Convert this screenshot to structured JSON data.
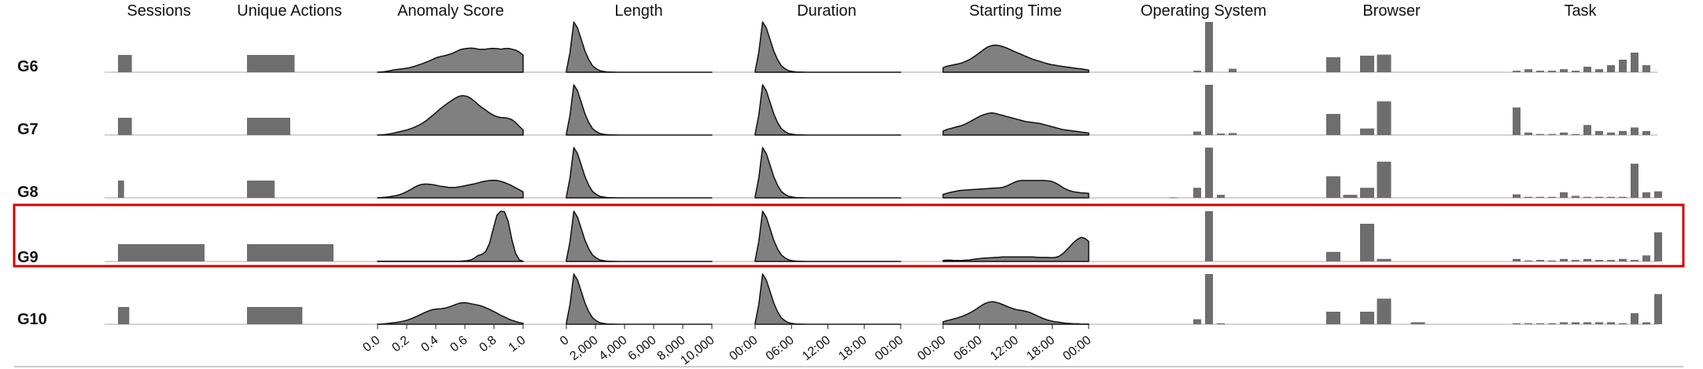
{
  "chart_data": {
    "type": "small-multiples",
    "columns": [
      "Sessions",
      "Unique Actions",
      "Anomaly Score",
      "Length",
      "Duration",
      "Starting Time",
      "Operating System",
      "Browser",
      "Task"
    ],
    "rows": [
      "G6",
      "G7",
      "G8",
      "G9",
      "G10"
    ],
    "highlighted_row": "G9",
    "axes": {
      "anomaly_ticks": [
        "0.0",
        "0.2",
        "0.4",
        "0.6",
        "0.8",
        "1.0"
      ],
      "length_ticks": [
        "0",
        "2,000",
        "4,000",
        "6,000",
        "8,000",
        "10,000"
      ],
      "duration_ticks": [
        "00:00",
        "06:00",
        "12:00",
        "18:00",
        "00:00"
      ],
      "starting_time_ticks": [
        "00:00",
        "06:00",
        "12:00",
        "18:00",
        "00:00"
      ]
    },
    "groups": [
      {
        "sessions": 0.16,
        "unique_actions": 0.55,
        "anomaly": [
          0.1,
          0.6,
          1.4,
          2.5,
          4,
          5.3,
          6.3,
          7.2,
          8.2,
          10,
          12,
          14.5,
          17,
          20,
          23,
          26.5,
          29.5,
          31.5,
          33,
          35,
          37.5,
          41,
          44.5,
          46.5,
          47.5,
          48,
          47.5,
          46,
          45.5,
          46,
          47,
          47.5,
          47,
          46,
          47,
          47.5,
          46,
          44,
          40,
          34
        ],
        "length": [
          2,
          40,
          100,
          88,
          65,
          42,
          25,
          13,
          7,
          3,
          1.5,
          0.6,
          0.3,
          0.1,
          0,
          0,
          0,
          0,
          0,
          0,
          0,
          0,
          0,
          0,
          0,
          0,
          0,
          0,
          0,
          0,
          0,
          0,
          0,
          0,
          0,
          0,
          0,
          0,
          0,
          0
        ],
        "duration": [
          2,
          40,
          100,
          88,
          65,
          42,
          25,
          13,
          7,
          3,
          1.5,
          0.6,
          0.3,
          0.1,
          0,
          0,
          0,
          0,
          0,
          0,
          0,
          0,
          0,
          0,
          0,
          0,
          0,
          0,
          0,
          0,
          0,
          0,
          0,
          0,
          0,
          0,
          0,
          0,
          0,
          0
        ],
        "start_time": [
          9,
          12,
          13.5,
          15,
          16.5,
          18.5,
          21.5,
          25,
          29.5,
          34.5,
          40,
          46,
          50.5,
          53,
          54,
          53,
          51,
          48.5,
          45,
          41.5,
          38.5,
          35.5,
          32,
          29,
          26,
          23.5,
          21.5,
          19,
          17,
          15,
          14,
          12.5,
          11.5,
          10.5,
          9.5,
          8.5,
          7.5,
          6.5,
          5.5,
          4
        ],
        "os": [
          0,
          0,
          0,
          0,
          0,
          0.03,
          1.0,
          0,
          0.07,
          0
        ],
        "browser": [
          0.3,
          0,
          0.33,
          0.35,
          0,
          0,
          0,
          0,
          0,
          0
        ],
        "task": [
          0.03,
          0.06,
          0.03,
          0.03,
          0.06,
          0.03,
          0.11,
          0.06,
          0.14,
          0.25,
          0.39,
          0.14,
          0
        ]
      },
      {
        "sessions": 0.16,
        "unique_actions": 0.5,
        "anomaly": [
          0.1,
          0.4,
          1,
          2,
          3.5,
          5.2,
          6.8,
          8.6,
          10.5,
          13,
          16,
          19.5,
          23.5,
          28.5,
          34.5,
          40.5,
          47,
          53.5,
          59,
          64.5,
          69.5,
          74,
          77.5,
          78.5,
          77,
          73,
          67,
          60.5,
          54.5,
          49.5,
          44,
          39.5,
          36.5,
          35,
          34.5,
          33.5,
          30.5,
          25,
          17,
          10
        ],
        "length": [
          2,
          40,
          100,
          88,
          65,
          42,
          25,
          13,
          7,
          3,
          1.5,
          0.6,
          0.3,
          0.1,
          0,
          0,
          0,
          0,
          0,
          0,
          0,
          0,
          0,
          0,
          0,
          0,
          0,
          0,
          0,
          0,
          0,
          0,
          0,
          0,
          0,
          0,
          0,
          0,
          0,
          0
        ],
        "duration": [
          2,
          40,
          100,
          88,
          65,
          42,
          25,
          13,
          7,
          3,
          1.5,
          0.6,
          0.3,
          0.1,
          0,
          0,
          0,
          0,
          0,
          0,
          0,
          0,
          0,
          0,
          0,
          0,
          0,
          0,
          0,
          0,
          0,
          0,
          0,
          0,
          0,
          0,
          0,
          0,
          0,
          0
        ],
        "start_time": [
          8,
          11,
          13,
          15,
          17,
          19,
          22,
          26,
          30,
          34,
          38,
          41,
          43,
          44,
          43,
          41,
          39,
          37,
          35,
          33,
          31,
          29,
          27,
          26,
          25,
          24,
          23,
          21,
          19,
          17,
          15,
          13,
          11,
          10,
          9,
          8,
          7,
          6,
          5,
          4
        ],
        "os": [
          0,
          0,
          0,
          0,
          0,
          0.07,
          1.0,
          0.03,
          0.04,
          0
        ],
        "browser": [
          0.42,
          0,
          0.13,
          0.67,
          0,
          0,
          0,
          0,
          0,
          0
        ],
        "task": [
          0.55,
          0.05,
          0.02,
          0.02,
          0.05,
          0.02,
          0.2,
          0.08,
          0.05,
          0.08,
          0.15,
          0.08,
          0
        ]
      },
      {
        "sessions": 0.07,
        "unique_actions": 0.32,
        "anomaly": [
          0.1,
          0.6,
          1.2,
          2.1,
          3.3,
          4.6,
          6.5,
          9.5,
          13,
          17,
          21.5,
          25,
          27,
          27.5,
          27,
          26,
          24.5,
          23,
          22,
          21,
          20.5,
          21,
          22,
          23.5,
          25,
          26.5,
          28,
          30,
          32,
          33.5,
          34.5,
          35,
          34.5,
          33,
          30.5,
          27.5,
          24,
          20,
          16,
          12
        ],
        "length": [
          2,
          40,
          100,
          88,
          65,
          42,
          25,
          13,
          7,
          3,
          1.5,
          0.6,
          0.3,
          0.1,
          0,
          0,
          0,
          0,
          0,
          0,
          0,
          0,
          0,
          0,
          0,
          0,
          0,
          0,
          0,
          0,
          0,
          0,
          0,
          0,
          0,
          0,
          0,
          0,
          0,
          0
        ],
        "duration": [
          2,
          40,
          100,
          88,
          65,
          42,
          25,
          13,
          7,
          3,
          1.5,
          0.6,
          0.3,
          0.1,
          0,
          0,
          0,
          0,
          0,
          0,
          0,
          0,
          0,
          0,
          0,
          0,
          0,
          0,
          0,
          0,
          0,
          0,
          0,
          0,
          0,
          0,
          0,
          0,
          0,
          0
        ],
        "start_time": [
          7,
          9,
          11,
          12.5,
          14,
          15,
          15.5,
          16,
          16.5,
          17,
          17.5,
          18,
          18.5,
          19,
          19.5,
          20,
          21,
          23.5,
          27,
          30.5,
          33.5,
          34.5,
          34.5,
          34.5,
          34.5,
          34.5,
          34.5,
          34.5,
          34,
          33,
          30,
          26,
          21,
          17,
          14,
          12,
          11,
          10,
          9.5,
          9
        ],
        "os": [
          0,
          0,
          0,
          0.01,
          0,
          0.2,
          1.0,
          0.06,
          0,
          0
        ],
        "browser": [
          0.43,
          0.06,
          0.2,
          0.72,
          0,
          0,
          0,
          0,
          0,
          0
        ],
        "task": [
          0.07,
          0.02,
          0.02,
          0.02,
          0.11,
          0.04,
          0.02,
          0.02,
          0.02,
          0.02,
          0.68,
          0.11,
          0.13
        ]
      },
      {
        "sessions": 1.0,
        "unique_actions": 1.0,
        "anomaly": [
          0.5,
          0.5,
          0.5,
          0.5,
          0.5,
          0.5,
          0.5,
          0.5,
          0.5,
          0.5,
          0.5,
          0.5,
          0.5,
          0.5,
          0.5,
          0.5,
          0.5,
          0.5,
          0.5,
          0.5,
          0.5,
          0.5,
          0.5,
          1,
          1.5,
          3,
          7,
          12,
          14,
          20,
          36,
          65,
          92,
          100,
          99,
          80,
          43,
          16,
          3,
          0.5
        ],
        "length": [
          2,
          40,
          100,
          88,
          65,
          42,
          25,
          13,
          7,
          3,
          1.5,
          0.6,
          0.3,
          0.1,
          0,
          0,
          0,
          0,
          0,
          0,
          0,
          0,
          0,
          0,
          0,
          0,
          0,
          0,
          0,
          0,
          0,
          0,
          0,
          0,
          0,
          0,
          0,
          0,
          0,
          0
        ],
        "duration": [
          2,
          40,
          100,
          88,
          65,
          42,
          25,
          13,
          7,
          3,
          1.5,
          0.6,
          0.3,
          0.1,
          0,
          0,
          0,
          0,
          0,
          0,
          0,
          0,
          0,
          0,
          0,
          0,
          0,
          0,
          0,
          0,
          0,
          0,
          0,
          0,
          0,
          0,
          0,
          0,
          0,
          0
        ],
        "start_time": [
          2,
          2.5,
          2.5,
          2,
          2,
          2,
          2.5,
          3,
          4,
          5,
          6,
          6.5,
          7,
          7.5,
          8,
          8.5,
          9,
          9,
          9,
          9,
          9,
          9,
          9,
          9,
          9,
          8.5,
          8,
          8,
          8,
          7.5,
          8,
          10,
          15,
          22,
          30,
          38,
          44,
          48,
          46,
          40
        ],
        "os": [
          0,
          0,
          0,
          0,
          0,
          0,
          1.0,
          0,
          0,
          0
        ],
        "browser": [
          0.19,
          0,
          0.75,
          0.05,
          0,
          0,
          0,
          0,
          0,
          0
        ],
        "task": [
          0.05,
          0.02,
          0.03,
          0.02,
          0.05,
          0.03,
          0.05,
          0.03,
          0.03,
          0.05,
          0.03,
          0.12,
          0.58
        ]
      },
      {
        "sessions": 0.13,
        "unique_actions": 0.64,
        "anomaly": [
          0.1,
          0.5,
          1,
          1.7,
          2.6,
          3.6,
          4.8,
          6.3,
          8.3,
          11,
          14,
          17.5,
          21,
          24.5,
          27.5,
          29.5,
          30.5,
          31,
          32,
          34,
          36.5,
          39.5,
          42,
          43,
          42.5,
          41,
          39.5,
          38,
          36,
          33,
          29.5,
          26,
          22,
          18,
          14.5,
          11,
          8,
          5.5,
          3.5,
          2
        ],
        "length": [
          2,
          40,
          100,
          88,
          65,
          42,
          25,
          13,
          7,
          3,
          1.5,
          0.6,
          0.3,
          0.1,
          0,
          0,
          0,
          0,
          0,
          0,
          0,
          0,
          0,
          0,
          0,
          0,
          0,
          0,
          0,
          0,
          0,
          0,
          0,
          0,
          0,
          0,
          0,
          0,
          0,
          0
        ],
        "duration": [
          2,
          40,
          100,
          88,
          65,
          42,
          25,
          13,
          7,
          3,
          1.5,
          0.6,
          0.3,
          0.1,
          0,
          0,
          0,
          0,
          0,
          0,
          0,
          0,
          0,
          0,
          0,
          0,
          0,
          0,
          0,
          0,
          0,
          0,
          0,
          0,
          0,
          0,
          0,
          0,
          0,
          0
        ],
        "start_time": [
          5,
          7,
          9,
          11,
          13,
          15.5,
          18.5,
          22,
          26,
          31,
          36,
          40.5,
          43.5,
          45,
          44,
          42,
          39,
          36,
          33,
          30.5,
          28.5,
          27.5,
          26,
          24,
          21,
          17.5,
          14,
          11,
          8.5,
          6.5,
          5,
          4,
          3,
          2,
          1.5,
          1,
          1,
          0.5,
          0.5,
          0.5
        ],
        "os": [
          0,
          0,
          0,
          0,
          0,
          0.1,
          1.0,
          0.02,
          0,
          0
        ],
        "browser": [
          0.25,
          0,
          0.25,
          0.51,
          0,
          0.04,
          0,
          0,
          0,
          0
        ],
        "task": [
          0.02,
          0.02,
          0.02,
          0.02,
          0.04,
          0.04,
          0.04,
          0.04,
          0.04,
          0.02,
          0.22,
          0.04,
          0.6
        ]
      }
    ]
  }
}
